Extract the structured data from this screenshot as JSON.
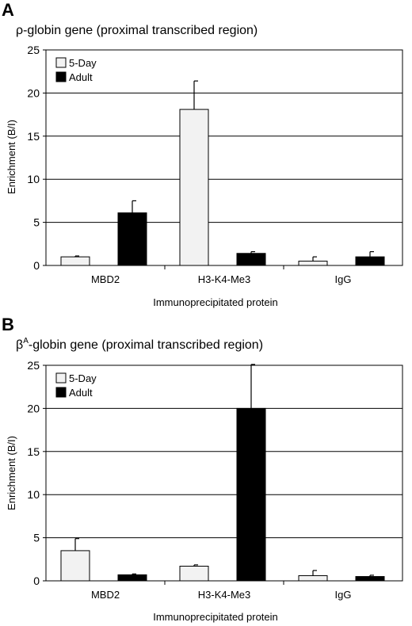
{
  "colors": {
    "five_day": "#f2f2f2",
    "adult": "#000000",
    "axis": "#000000",
    "grid": "#000000"
  },
  "chart_data": [
    {
      "type": "bar",
      "panel_letter": "A",
      "title": "ρ-globin gene (proximal transcribed region)",
      "title_parts": {
        "prefix": "ρ-globin gene (proximal transcribed region)",
        "superscript": ""
      },
      "xlabel": "Immunoprecipitated protein",
      "ylabel": "Enrichment (B/I)",
      "ylim": [
        0,
        25
      ],
      "yticks": [
        0,
        5,
        10,
        15,
        20,
        25
      ],
      "yticklabels": [
        "0",
        "5",
        "10",
        "15",
        "20",
        "25"
      ],
      "grid": true,
      "legend_position": "top-left",
      "categories": [
        "MBD2",
        "H3-K4-Me3",
        "IgG"
      ],
      "series": [
        {
          "name": "5-Day",
          "values": [
            1.0,
            18.1,
            0.5
          ],
          "errors": [
            0.1,
            3.3,
            0.5
          ]
        },
        {
          "name": "Adult",
          "values": [
            6.1,
            1.4,
            1.0
          ],
          "errors": [
            1.4,
            0.2,
            0.6
          ]
        }
      ]
    },
    {
      "type": "bar",
      "panel_letter": "B",
      "title": "βA-globin gene (proximal transcribed region)",
      "title_parts": {
        "prefix": "β",
        "superscript": "A",
        "suffix": "-globin gene (proximal transcribed region)"
      },
      "xlabel": "Immunoprecipitated protein",
      "ylabel": "Enrichment (B/I)",
      "ylim": [
        0,
        25
      ],
      "yticks": [
        0,
        5,
        10,
        15,
        20,
        25
      ],
      "yticklabels": [
        "0",
        "5",
        "10",
        "15",
        "20",
        "25"
      ],
      "grid": true,
      "legend_position": "top-left",
      "categories": [
        "MBD2",
        "H3-K4-Me3",
        "IgG"
      ],
      "series": [
        {
          "name": "5-Day",
          "values": [
            3.5,
            1.7,
            0.6
          ],
          "errors": [
            1.4,
            0.15,
            0.6
          ]
        },
        {
          "name": "Adult",
          "values": [
            0.7,
            20.0,
            0.5
          ],
          "errors": [
            0.1,
            5.1,
            0.15
          ]
        }
      ]
    }
  ]
}
